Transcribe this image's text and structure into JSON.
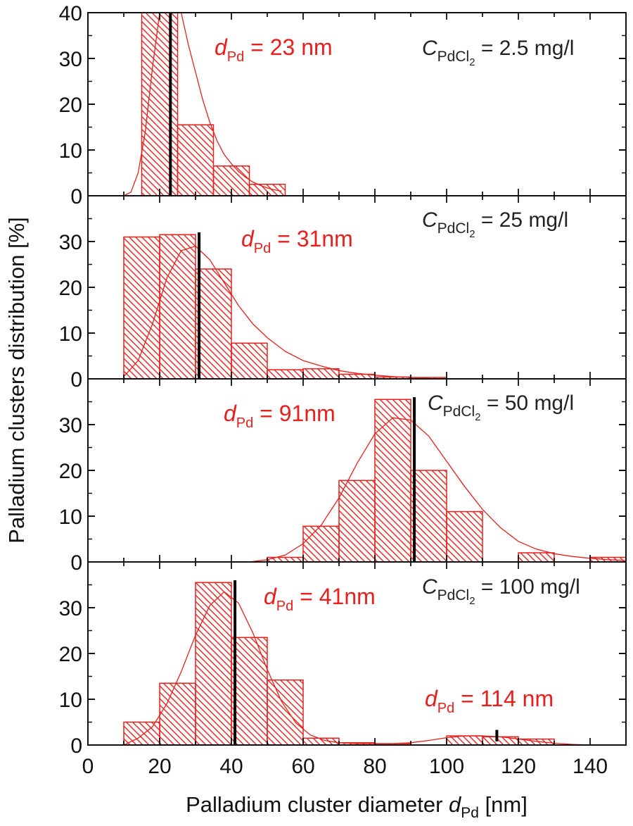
{
  "chart_data": {
    "type": "bar",
    "description_free": true,
    "xlabel_prefix": "Palladium cluster diameter ",
    "xlabel_var": "d",
    "xlabel_sub": "Pd",
    "xlabel_suffix": " [nm]",
    "ylabel": "Palladium clusters distribution [%]",
    "xlim": [
      0,
      150
    ],
    "x_ticks": [
      0,
      20,
      40,
      60,
      80,
      100,
      120,
      140
    ],
    "bar_color": "#e8201c",
    "fit_color": "#e8201c",
    "marker_color": "#000000",
    "panels": [
      {
        "name": "panel-2-5",
        "ylim": [
          0,
          40
        ],
        "y_ticks": [
          0,
          10,
          20,
          30,
          40
        ],
        "conc_var": "C",
        "conc_sub": "PdCl",
        "conc_subsub": "2",
        "conc_value": " = 2.5 mg/l",
        "labels": [
          {
            "var": "d",
            "sub": "Pd",
            "value": " = 23 nm"
          }
        ],
        "markers": [
          23
        ],
        "bins": [
          {
            "start": 15,
            "end": 25,
            "value": 40
          },
          {
            "start": 25,
            "end": 35,
            "value": 15.5
          },
          {
            "start": 35,
            "end": 45,
            "value": 6.5
          },
          {
            "start": 45,
            "end": 55,
            "value": 2.5
          }
        ],
        "fit": [
          [
            10,
            0
          ],
          [
            12,
            0.8
          ],
          [
            14,
            5
          ],
          [
            16,
            14
          ],
          [
            18,
            28
          ],
          [
            20,
            40
          ],
          [
            22,
            46
          ],
          [
            24,
            45
          ],
          [
            26,
            40
          ],
          [
            28,
            33
          ],
          [
            30,
            27
          ],
          [
            32,
            21
          ],
          [
            34,
            16
          ],
          [
            36,
            12
          ],
          [
            38,
            9
          ],
          [
            40,
            7
          ],
          [
            42,
            5.3
          ],
          [
            44,
            4
          ],
          [
            46,
            3
          ],
          [
            48,
            2.3
          ],
          [
            50,
            1.7
          ],
          [
            52,
            1.3
          ],
          [
            54,
            1
          ]
        ]
      },
      {
        "name": "panel-25",
        "ylim": [
          0,
          40
        ],
        "y_ticks": [
          0,
          10,
          20,
          30
        ],
        "conc_var": "C",
        "conc_sub": "PdCl",
        "conc_subsub": "2",
        "conc_value": " = 25 mg/l",
        "labels": [
          {
            "var": "d",
            "sub": "Pd",
            "value": " = 31nm"
          }
        ],
        "markers": [
          31
        ],
        "bins": [
          {
            "start": 10,
            "end": 20,
            "value": 31
          },
          {
            "start": 20,
            "end": 30,
            "value": 31.5
          },
          {
            "start": 30,
            "end": 40,
            "value": 24
          },
          {
            "start": 40,
            "end": 50,
            "value": 7.8
          },
          {
            "start": 50,
            "end": 60,
            "value": 2
          },
          {
            "start": 60,
            "end": 70,
            "value": 2.2
          },
          {
            "start": 70,
            "end": 80,
            "value": 1
          },
          {
            "start": 80,
            "end": 90,
            "value": 0.4
          },
          {
            "start": 90,
            "end": 100,
            "value": 0.3
          }
        ],
        "fit": [
          [
            10,
            0.5
          ],
          [
            14,
            4
          ],
          [
            18,
            12
          ],
          [
            22,
            22
          ],
          [
            26,
            28
          ],
          [
            30,
            29
          ],
          [
            34,
            26
          ],
          [
            38,
            21
          ],
          [
            42,
            16
          ],
          [
            46,
            12
          ],
          [
            50,
            9
          ],
          [
            55,
            6
          ],
          [
            60,
            4
          ],
          [
            65,
            2.8
          ],
          [
            70,
            1.8
          ],
          [
            75,
            1.2
          ],
          [
            80,
            0.8
          ],
          [
            85,
            0.5
          ],
          [
            90,
            0.3
          ],
          [
            95,
            0.2
          ]
        ]
      },
      {
        "name": "panel-50",
        "ylim": [
          0,
          40
        ],
        "y_ticks": [
          0,
          10,
          20,
          30
        ],
        "conc_var": "C",
        "conc_sub": "PdCl",
        "conc_subsub": "2",
        "conc_value": " = 50 mg/l",
        "labels": [
          {
            "var": "d",
            "sub": "Pd",
            "value": " = 91nm"
          }
        ],
        "markers": [
          91
        ],
        "bins": [
          {
            "start": 50,
            "end": 60,
            "value": 1
          },
          {
            "start": 60,
            "end": 70,
            "value": 7.8
          },
          {
            "start": 70,
            "end": 80,
            "value": 17.8
          },
          {
            "start": 80,
            "end": 90,
            "value": 35.5
          },
          {
            "start": 90,
            "end": 100,
            "value": 20
          },
          {
            "start": 100,
            "end": 110,
            "value": 11
          },
          {
            "start": 120,
            "end": 130,
            "value": 2
          },
          {
            "start": 140,
            "end": 150,
            "value": 1
          }
        ],
        "fit": [
          [
            45,
            0
          ],
          [
            50,
            0.5
          ],
          [
            55,
            1.5
          ],
          [
            60,
            4
          ],
          [
            65,
            8
          ],
          [
            70,
            14
          ],
          [
            75,
            21.5
          ],
          [
            80,
            28
          ],
          [
            85,
            31.5
          ],
          [
            90,
            31
          ],
          [
            95,
            27.5
          ],
          [
            100,
            22
          ],
          [
            105,
            16.5
          ],
          [
            110,
            11.5
          ],
          [
            115,
            7.5
          ],
          [
            120,
            4.5
          ],
          [
            125,
            2.8
          ],
          [
            130,
            1.8
          ],
          [
            135,
            1.2
          ],
          [
            140,
            0.8
          ],
          [
            145,
            0.5
          ],
          [
            150,
            0.3
          ]
        ]
      },
      {
        "name": "panel-100",
        "ylim": [
          0,
          40
        ],
        "y_ticks": [
          0,
          10,
          20,
          30
        ],
        "conc_var": "C",
        "conc_sub": "PdCl",
        "conc_subsub": "2",
        "conc_value": " = 100 mg/l",
        "labels": [
          {
            "var": "d",
            "sub": "Pd",
            "value": " = 41nm"
          },
          {
            "var": "d",
            "sub": "Pd",
            "value": " = 114 nm"
          }
        ],
        "markers": [
          41,
          114
        ],
        "bins": [
          {
            "start": 10,
            "end": 20,
            "value": 5
          },
          {
            "start": 20,
            "end": 30,
            "value": 13.5
          },
          {
            "start": 30,
            "end": 40,
            "value": 35.5
          },
          {
            "start": 40,
            "end": 50,
            "value": 23.5
          },
          {
            "start": 50,
            "end": 60,
            "value": 14.2
          },
          {
            "start": 60,
            "end": 70,
            "value": 1.5
          },
          {
            "start": 70,
            "end": 80,
            "value": 0.5
          },
          {
            "start": 80,
            "end": 90,
            "value": 0.3
          },
          {
            "start": 100,
            "end": 110,
            "value": 2
          },
          {
            "start": 110,
            "end": 120,
            "value": 1.8
          },
          {
            "start": 120,
            "end": 130,
            "value": 1.3
          }
        ],
        "fit": [
          [
            10,
            0
          ],
          [
            14,
            1.5
          ],
          [
            18,
            4
          ],
          [
            22,
            9
          ],
          [
            26,
            16
          ],
          [
            30,
            24
          ],
          [
            34,
            30.5
          ],
          [
            38,
            33.5
          ],
          [
            42,
            31
          ],
          [
            46,
            24.5
          ],
          [
            50,
            16.5
          ],
          [
            54,
            9.5
          ],
          [
            58,
            4.8
          ],
          [
            62,
            2.2
          ],
          [
            66,
            1
          ],
          [
            70,
            0.5
          ],
          [
            75,
            0.3
          ],
          [
            80,
            0.3
          ],
          [
            85,
            0.3
          ],
          [
            90,
            0.5
          ],
          [
            95,
            1
          ],
          [
            100,
            1.6
          ],
          [
            105,
            2
          ],
          [
            110,
            2
          ],
          [
            115,
            1.8
          ],
          [
            120,
            1.3
          ],
          [
            125,
            0.8
          ],
          [
            130,
            0.4
          ],
          [
            135,
            0.15
          ],
          [
            140,
            0
          ]
        ]
      }
    ]
  }
}
